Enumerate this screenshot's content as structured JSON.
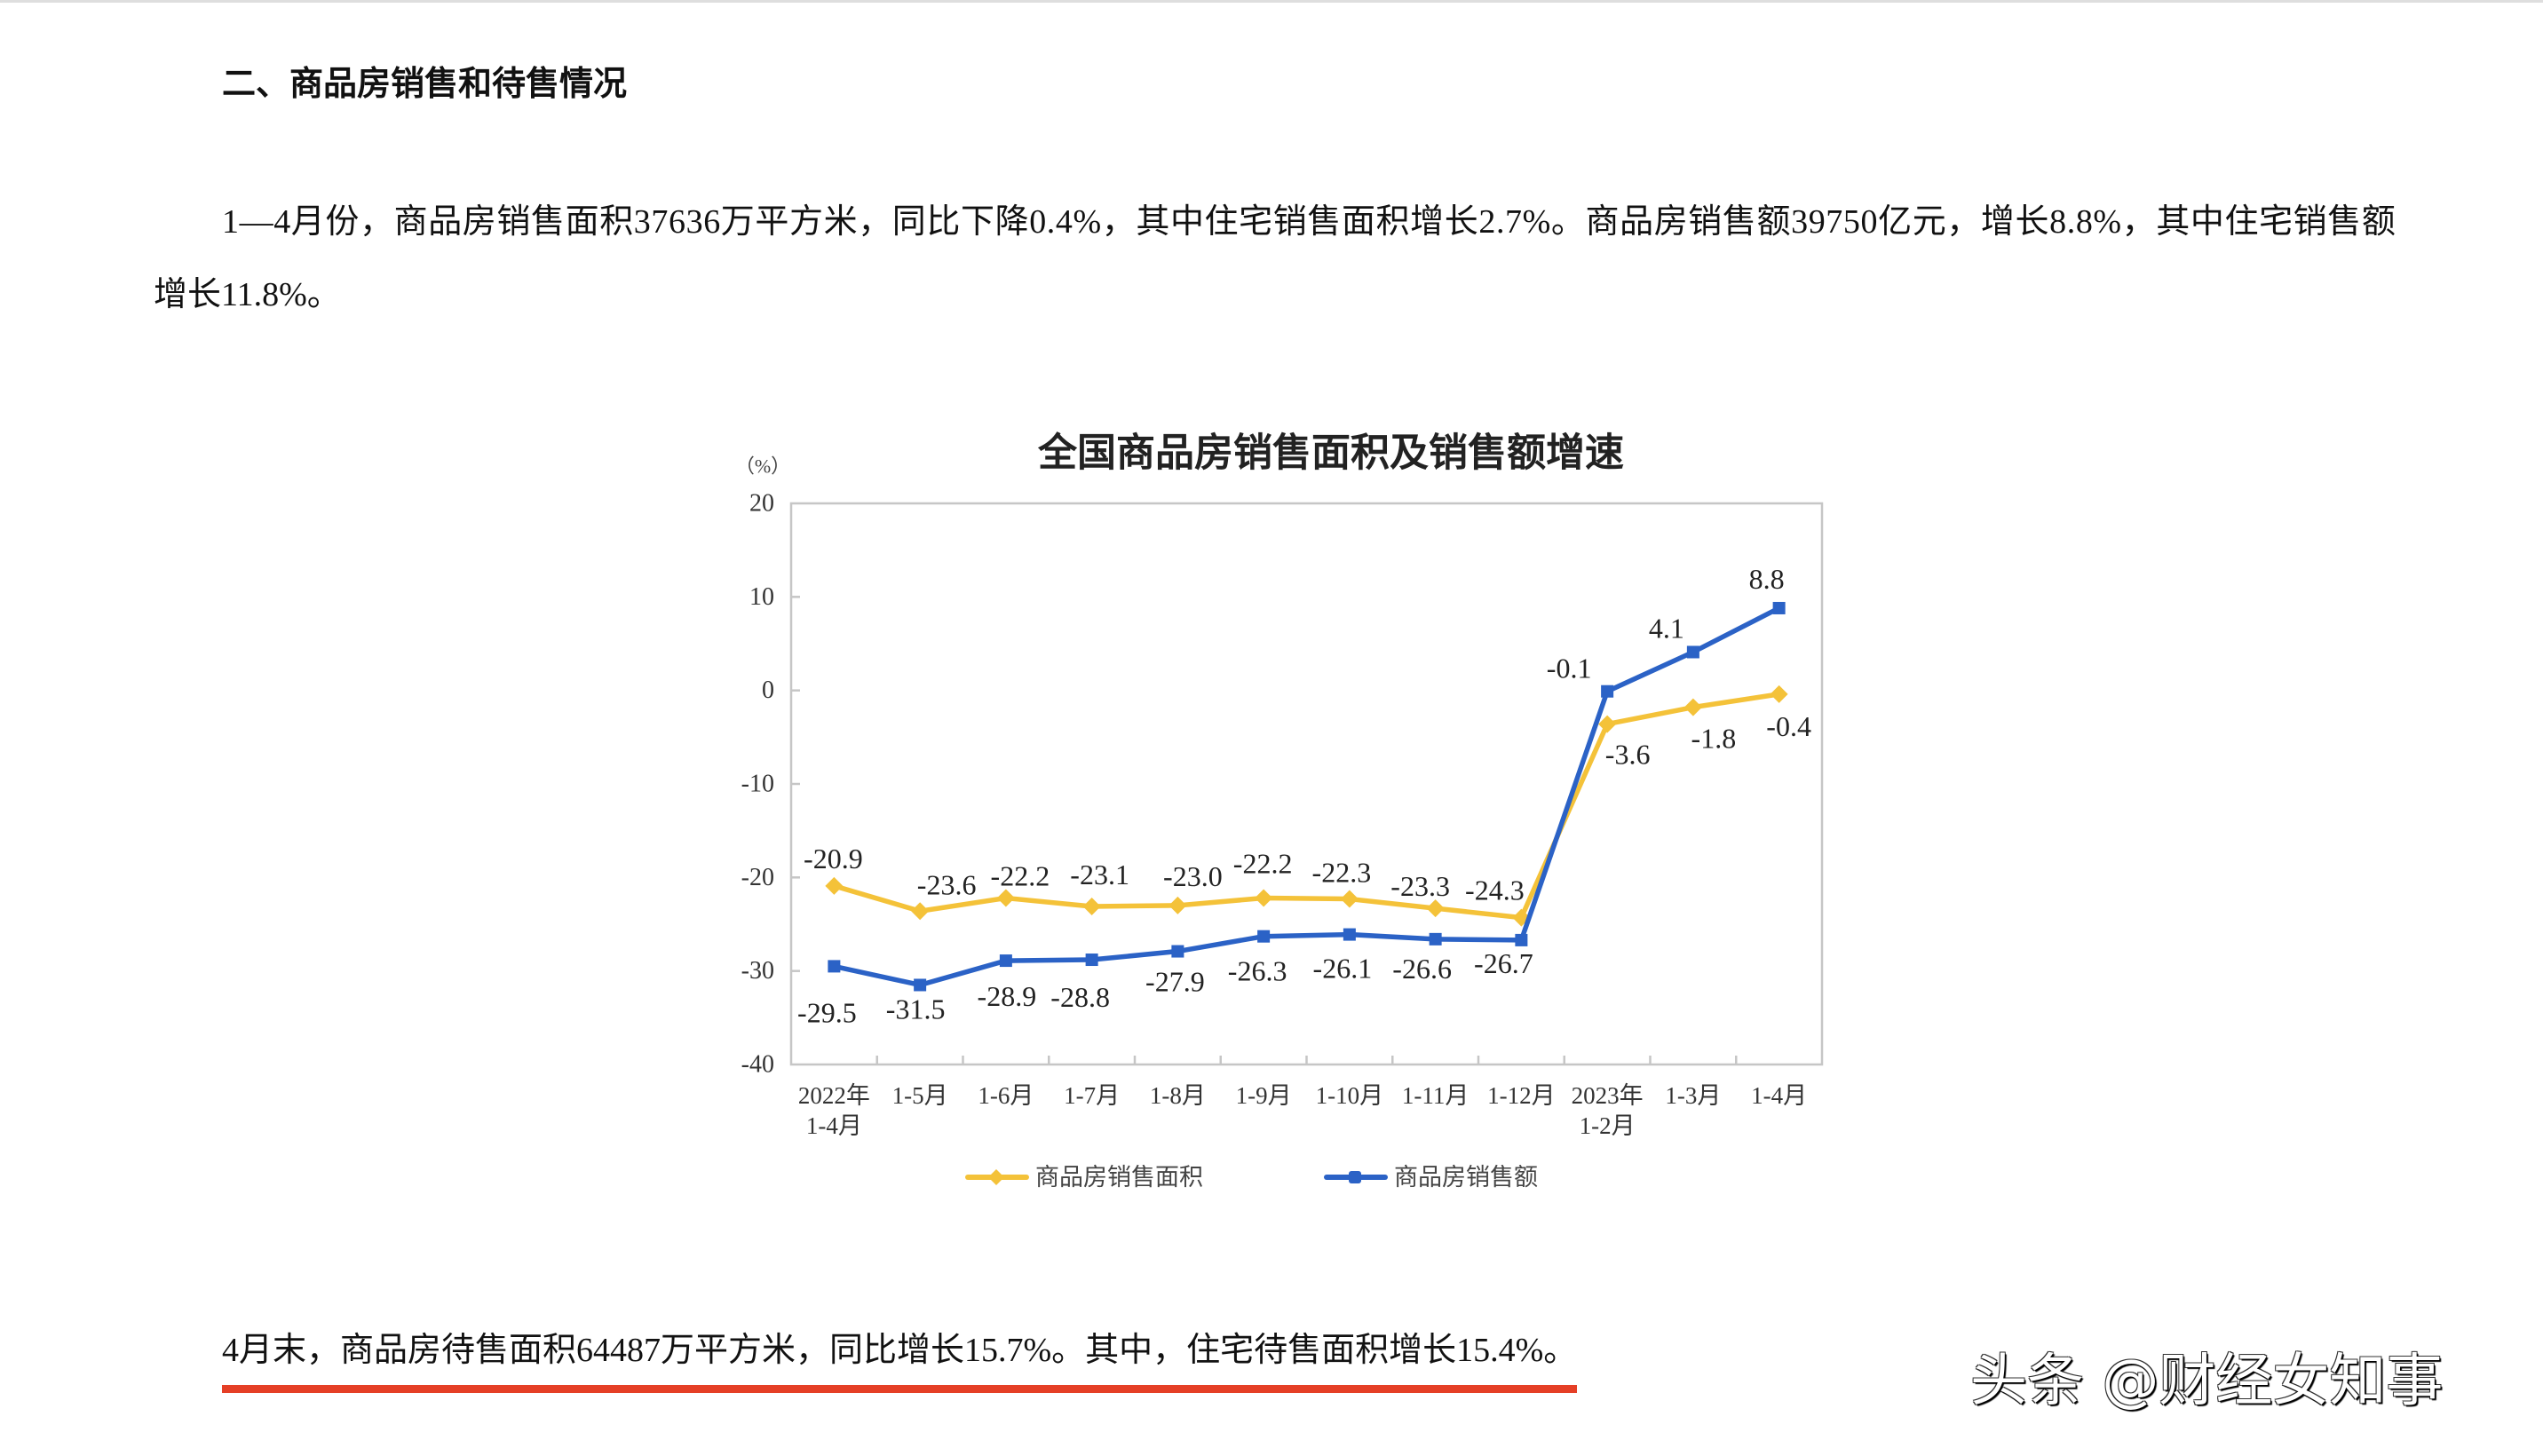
{
  "document": {
    "section_heading": "二、商品房销售和待售情况",
    "paragraph1": {
      "lines": [
        "1—4月份，商品房销售面积37636万平方米，同比下降0.4%，其中住宅销售面积增长2.7%。商品房销售额39750亿元，增长8.8%，其中住宅销售额",
        "增长11.8%。"
      ]
    },
    "paragraph2": "4月末，商品房待售面积64487万平方米，同比增长15.7%。其中，住宅待售面积增长15.4%。",
    "watermark": "头条 @财经女知事"
  },
  "colors": {
    "area_series": "#F4C239",
    "amount_series": "#2B62C6",
    "underline": "#E53F26",
    "plot_border": "#C6C6C6"
  },
  "chart_data": {
    "type": "line",
    "title": "全国商品房销售面积及销售额增速",
    "xlabel": "",
    "ylabel": "（%）",
    "ylim": [
      -40,
      20
    ],
    "yticks": [
      20,
      10,
      0,
      -10,
      -20,
      -30,
      -40
    ],
    "grid": false,
    "legend_position": "bottom",
    "categories": [
      "2022年\n1-4月",
      "1-5月",
      "1-6月",
      "1-7月",
      "1-8月",
      "1-9月",
      "1-10月",
      "1-11月",
      "1-12月",
      "2023年\n1-2月",
      "1-3月",
      "1-4月"
    ],
    "series": [
      {
        "key": "sales-area",
        "name": "商品房销售面积",
        "color": "#F4C239",
        "marker": "diamond",
        "values": [
          -20.9,
          -23.6,
          -22.2,
          -23.1,
          -23.0,
          -22.2,
          -22.3,
          -23.3,
          -24.3,
          -3.6,
          -1.8,
          -0.4
        ],
        "label_offsets": [
          [
            -1,
            -31
          ],
          [
            30,
            -30
          ],
          [
            16,
            -25
          ],
          [
            9,
            -36
          ],
          [
            17,
            -33
          ],
          [
            -1,
            -39
          ],
          [
            -9,
            -30
          ],
          [
            -17,
            -25
          ],
          [
            -30,
            -31
          ],
          [
            23,
            34
          ],
          [
            23,
            35
          ],
          [
            11,
            36
          ]
        ]
      },
      {
        "key": "sales-amount",
        "name": "商品房销售额",
        "color": "#2B62C6",
        "marker": "square",
        "values": [
          -29.5,
          -31.5,
          -28.9,
          -28.8,
          -27.9,
          -26.3,
          -26.1,
          -26.6,
          -26.7,
          -0.1,
          4.1,
          8.8
        ],
        "label_offsets": [
          [
            -8,
            52
          ],
          [
            -5,
            27
          ],
          [
            1,
            40
          ],
          [
            -13,
            42
          ],
          [
            -3,
            34
          ],
          [
            -7,
            39
          ],
          [
            -8,
            38
          ],
          [
            -15,
            33
          ],
          [
            -20,
            26
          ],
          [
            -43,
            -26
          ],
          [
            -30,
            -27
          ],
          [
            -14,
            -33
          ]
        ]
      }
    ]
  }
}
